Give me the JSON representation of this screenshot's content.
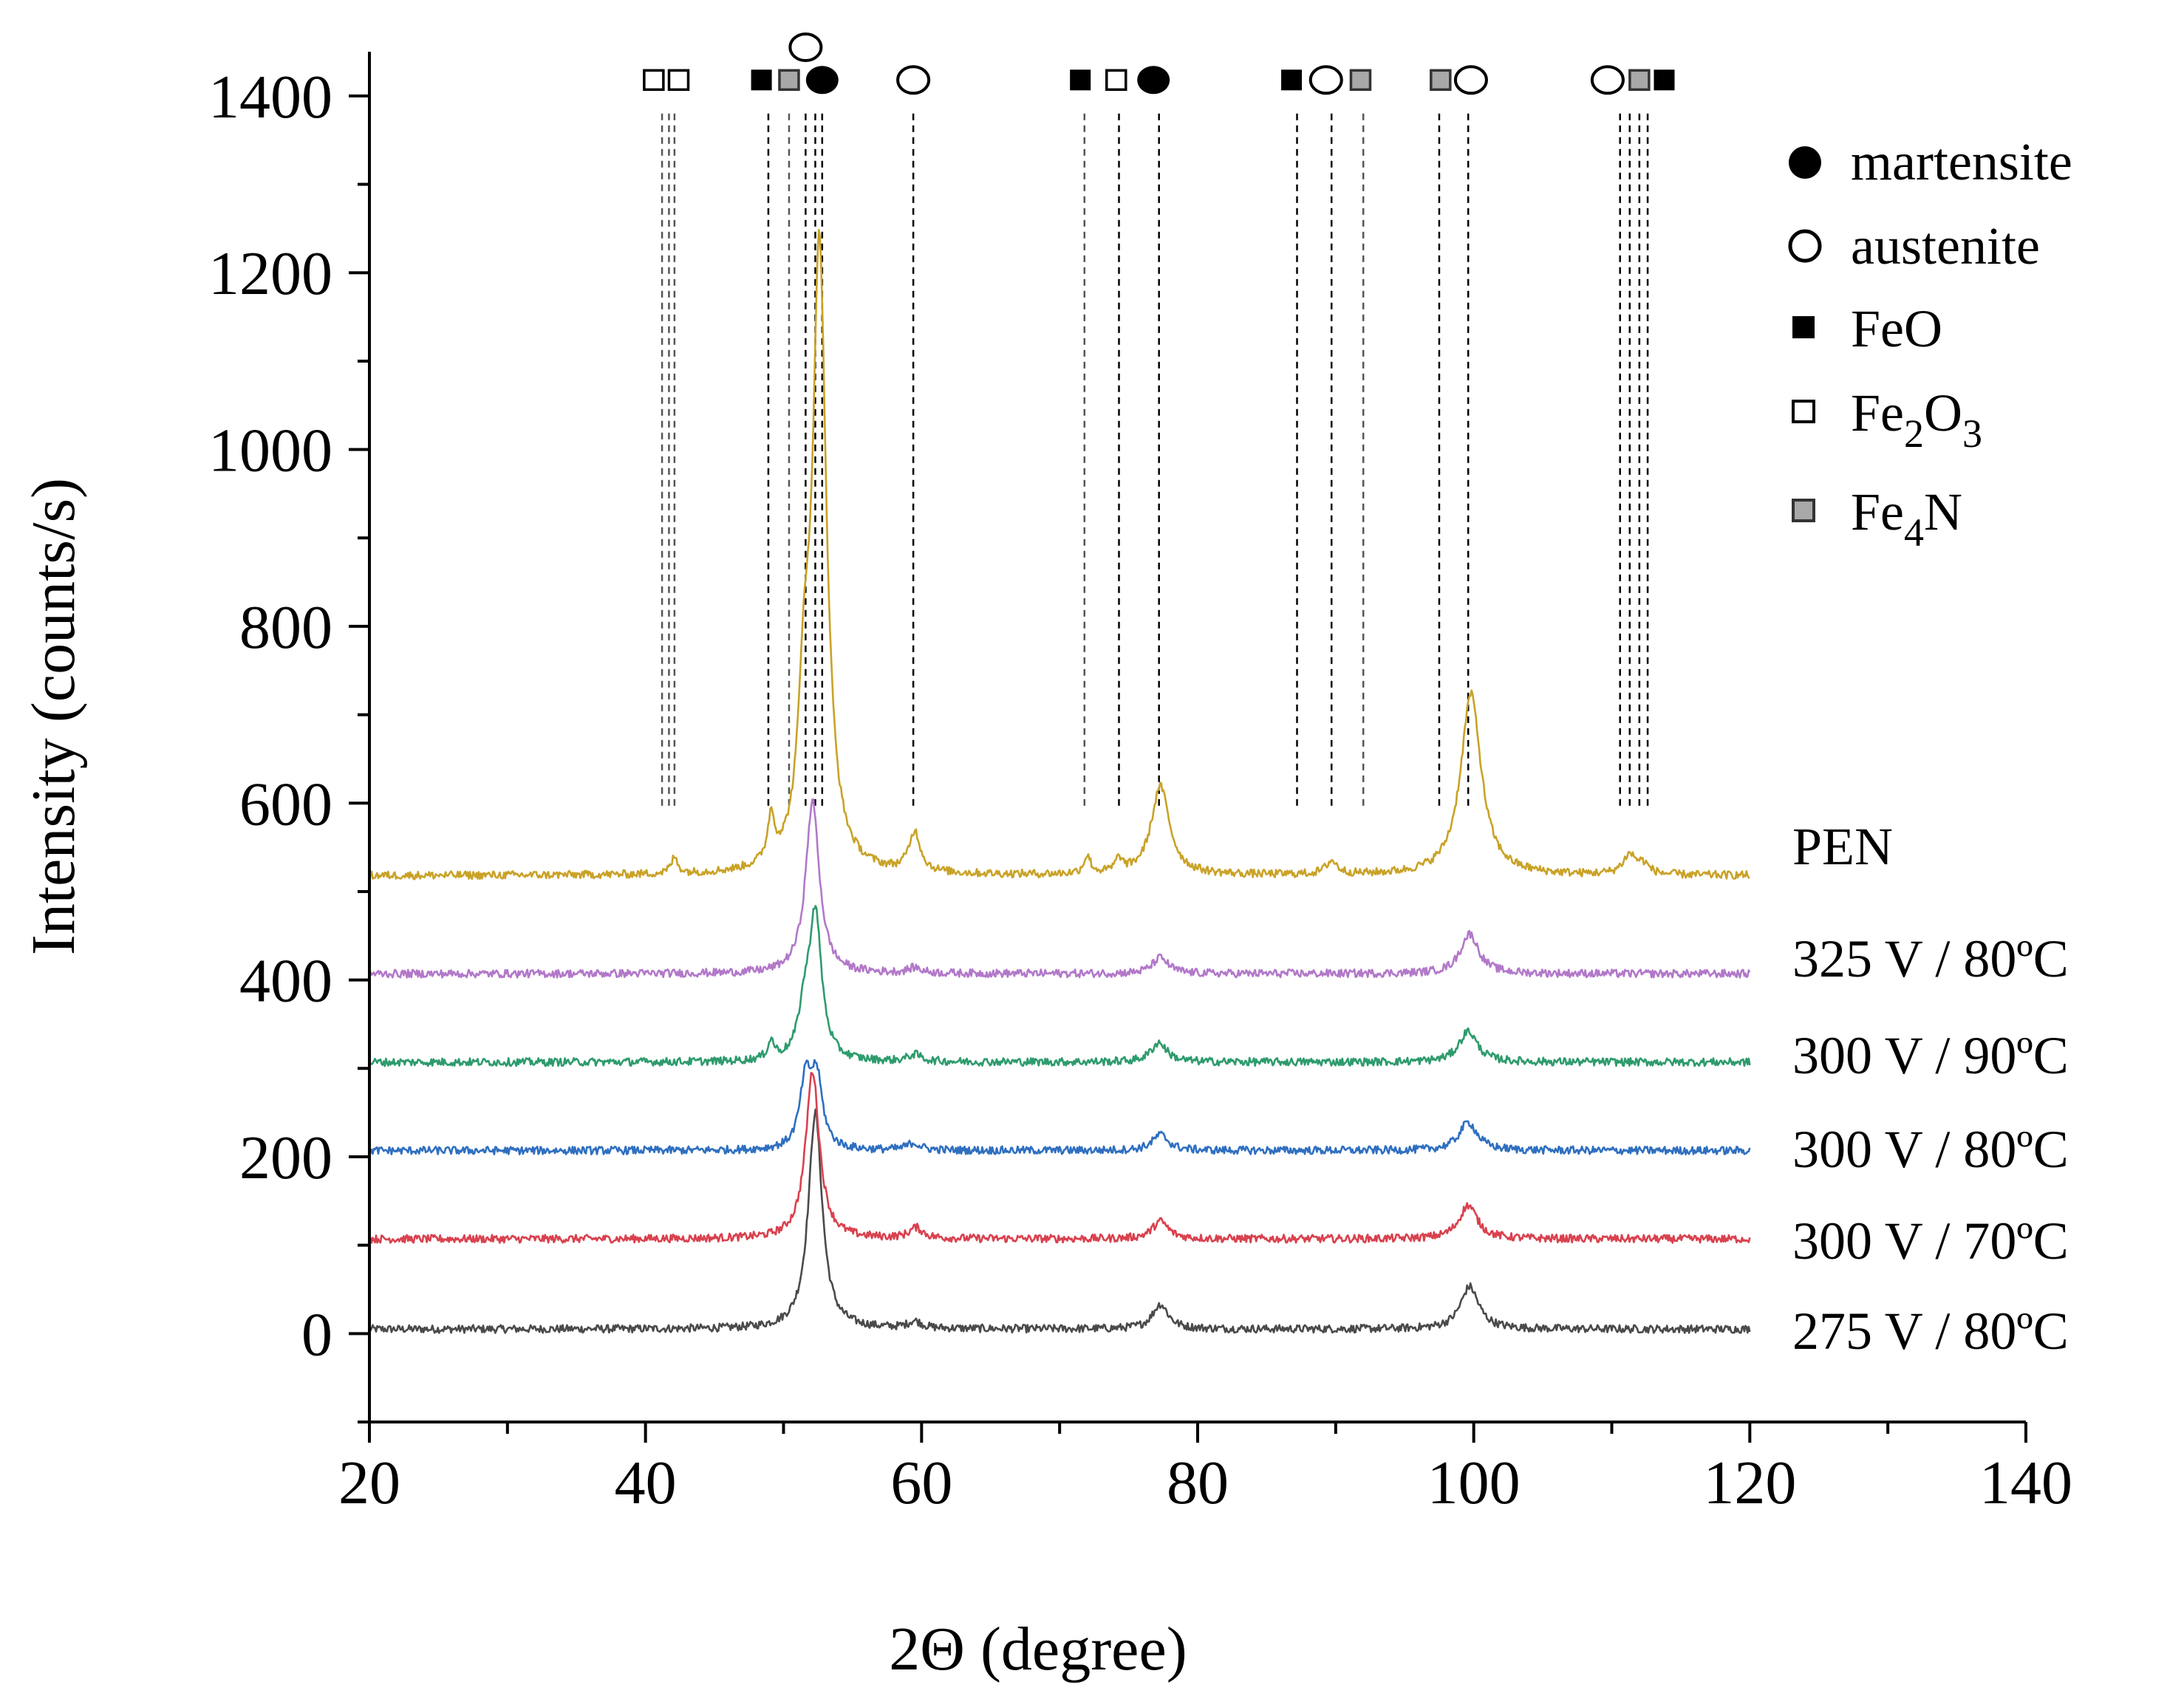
{
  "chart_data": {
    "type": "line",
    "title": "",
    "xlabel": "2Θ (degree)",
    "ylabel": "Intensity (counts/s)",
    "xlim": [
      20,
      140
    ],
    "ylim": [
      -100,
      1450
    ],
    "xticks": [
      20,
      40,
      60,
      80,
      100,
      120,
      140
    ],
    "yticks": [
      0,
      200,
      400,
      600,
      800,
      1000,
      1200,
      1400
    ],
    "grid": false,
    "legend": {
      "location": "top-right",
      "entries": [
        {
          "label": "martensite",
          "marker": "filled-circle",
          "color": "#000000"
        },
        {
          "label": "austenite",
          "marker": "open-circle",
          "color": "#000000"
        },
        {
          "label": "FeO",
          "marker": "filled-square",
          "color": "#000000"
        },
        {
          "label": "Fe2O3",
          "label_base": "Fe",
          "label_sub1": "2",
          "label_mid": "O",
          "label_sub2": "3",
          "marker": "open-square",
          "color": "#000000"
        },
        {
          "label": "Fe4N",
          "label_base": "Fe",
          "label_sub1": "4",
          "label_mid": "N",
          "marker": "gray-square",
          "color": "#9a9a9a"
        }
      ]
    },
    "series": [
      {
        "name": "275 V / 80ºC",
        "color": "#4a4a4a",
        "baseline": 5,
        "peaks": [
          [
            52.3,
            245,
            0.6
          ],
          [
            59.5,
            8,
            0.6
          ],
          [
            77.3,
            28,
            0.7
          ],
          [
            99.7,
            48,
            0.8
          ]
        ]
      },
      {
        "name": "300 V / 70ºC",
        "color": "#d9414e",
        "baseline": 107,
        "peaks": [
          [
            52.1,
            190,
            0.6
          ],
          [
            59.6,
            12,
            0.6
          ],
          [
            77.3,
            20,
            0.7
          ],
          [
            99.6,
            38,
            0.8
          ]
        ]
      },
      {
        "name": "300 V / 80ºC",
        "color": "#2f6fc0",
        "baseline": 207,
        "peaks": [
          [
            51.6,
            75,
            0.5
          ],
          [
            52.4,
            78,
            0.5
          ],
          [
            59.4,
            8,
            0.6
          ],
          [
            77.3,
            18,
            0.7
          ],
          [
            99.6,
            32,
            0.8
          ]
        ]
      },
      {
        "name": "300 V / 90ºC",
        "color": "#2e9b6d",
        "baseline": 307,
        "peaks": [
          [
            49.1,
            20,
            0.3
          ],
          [
            51.5,
            45,
            0.5
          ],
          [
            52.3,
            165,
            0.55
          ],
          [
            59.5,
            8,
            0.6
          ],
          [
            77.2,
            22,
            0.7
          ],
          [
            99.6,
            35,
            0.8
          ]
        ]
      },
      {
        "name": "325 V / 80ºC",
        "color": "#b278c9",
        "baseline": 407,
        "peaks": [
          [
            52.1,
            195,
            0.6
          ],
          [
            59.5,
            6,
            0.6
          ],
          [
            77.3,
            18,
            0.7
          ],
          [
            99.7,
            45,
            0.8
          ]
        ]
      },
      {
        "name": "PEN",
        "color": "#c9a227",
        "baseline": 518,
        "peaks": [
          [
            42.1,
            18,
            0.3
          ],
          [
            49.1,
            50,
            0.3
          ],
          [
            51.5,
            160,
            0.5
          ],
          [
            52.6,
            700,
            0.6
          ],
          [
            59.5,
            45,
            0.5
          ],
          [
            72.0,
            20,
            0.3
          ],
          [
            74.3,
            15,
            0.3
          ],
          [
            77.3,
            100,
            0.8
          ],
          [
            89.7,
            15,
            0.5
          ],
          [
            99.8,
            205,
            0.9
          ],
          [
            111.3,
            22,
            0.6
          ],
          [
            112.3,
            10,
            0.5
          ]
        ]
      }
    ],
    "reference_lines": [
      {
        "x": 41.2,
        "color": "#555555"
      },
      {
        "x": 41.7,
        "color": "#555555"
      },
      {
        "x": 42.1,
        "color": "#555555"
      },
      {
        "x": 48.9,
        "color": "#000000"
      },
      {
        "x": 50.4,
        "color": "#555555"
      },
      {
        "x": 51.6,
        "color": "#000000"
      },
      {
        "x": 52.3,
        "color": "#000000"
      },
      {
        "x": 52.8,
        "color": "#000000"
      },
      {
        "x": 59.4,
        "color": "#000000"
      },
      {
        "x": 71.8,
        "color": "#555555"
      },
      {
        "x": 74.3,
        "color": "#000000"
      },
      {
        "x": 77.2,
        "color": "#000000"
      },
      {
        "x": 87.2,
        "color": "#000000"
      },
      {
        "x": 89.7,
        "color": "#000000"
      },
      {
        "x": 92.0,
        "color": "#555555"
      },
      {
        "x": 97.5,
        "color": "#000000"
      },
      {
        "x": 99.6,
        "color": "#000000"
      },
      {
        "x": 110.6,
        "color": "#000000"
      },
      {
        "x": 111.3,
        "color": "#000000"
      },
      {
        "x": 112.0,
        "color": "#000000"
      },
      {
        "x": 112.6,
        "color": "#000000"
      }
    ],
    "phase_markers": [
      {
        "x": 40.6,
        "marker": "open-square"
      },
      {
        "x": 42.4,
        "marker": "open-square"
      },
      {
        "x": 48.4,
        "marker": "filled-square"
      },
      {
        "x": 50.4,
        "marker": "gray-square"
      },
      {
        "x": 51.6,
        "marker": "open-circle",
        "row": "upper"
      },
      {
        "x": 52.8,
        "marker": "filled-circle"
      },
      {
        "x": 59.4,
        "marker": "open-circle"
      },
      {
        "x": 71.5,
        "marker": "filled-square"
      },
      {
        "x": 74.1,
        "marker": "open-square"
      },
      {
        "x": 76.8,
        "marker": "filled-circle"
      },
      {
        "x": 86.8,
        "marker": "filled-square"
      },
      {
        "x": 89.3,
        "marker": "open-circle"
      },
      {
        "x": 91.8,
        "marker": "gray-square"
      },
      {
        "x": 97.6,
        "marker": "gray-square"
      },
      {
        "x": 99.8,
        "marker": "open-circle"
      },
      {
        "x": 109.7,
        "marker": "open-circle"
      },
      {
        "x": 112.0,
        "marker": "gray-square"
      },
      {
        "x": 113.8,
        "marker": "filled-square"
      }
    ]
  }
}
